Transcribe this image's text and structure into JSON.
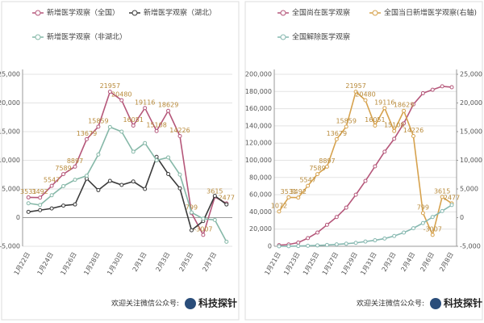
{
  "chart_data": [
    {
      "type": "line",
      "categories": [
        "1月22日",
        null,
        "1月24日",
        null,
        "1月26日",
        null,
        "1月28日",
        null,
        "1月30日",
        null,
        "2月1日",
        null,
        "2月3日",
        null,
        "2月5日",
        null,
        "2月7日",
        null
      ],
      "series": [
        {
          "name": "新增医学观察（全国）",
          "color": "#b5577a",
          "data_labels": true,
          "values": [
            3531,
            3492,
            5547,
            7589,
            8897,
            13679,
            15859,
            21957,
            20480,
            16051,
            19116,
            15108,
            18629,
            14226,
            799,
            -3007,
            3615,
            2477
          ]
        },
        {
          "name": "新增医学观察（湖北）",
          "color": "#3a3a3a",
          "values": [
            1000,
            1300,
            1600,
            2100,
            2300,
            6800,
            4800,
            6400,
            5700,
            6300,
            5000,
            10600,
            7600,
            5100,
            -2200,
            -600,
            3800,
            2300
          ]
        },
        {
          "name": "新增医学观察（非湖北）",
          "color": "#86b8a8",
          "values": [
            2500,
            2200,
            3900,
            5500,
            6600,
            7300,
            11000,
            15800,
            15000,
            11500,
            13000,
            10000,
            10500,
            7500,
            900,
            -200,
            -400,
            -4200
          ]
        }
      ],
      "ylim": [
        -5000,
        25000
      ],
      "yticks": [
        {
          "value": -5000,
          "label": "-5,000"
        },
        0,
        {
          "value": 5000,
          "label": "5,000"
        },
        {
          "value": 10000,
          "label": "10,000"
        },
        {
          "value": 15000,
          "label": "15,000"
        },
        {
          "value": 20000,
          "label": "20,000"
        },
        {
          "value": 25000,
          "label": "25,000"
        }
      ],
      "grid": true,
      "footer": {
        "prefix": "欢迎关注微信公众号:",
        "brand": "科技探针"
      }
    },
    {
      "type": "line",
      "categories": [
        "1月21日",
        null,
        "1月23日",
        null,
        "1月25日",
        null,
        "1月27日",
        null,
        "1月29日",
        null,
        "1月31日",
        null,
        "2月2日",
        null,
        "2月4日",
        null,
        "2月6日",
        null,
        "2月8日"
      ],
      "series": [
        {
          "name": "全国尚在医学观察",
          "color": "#b5577a",
          "values": [
            1300,
            2100,
            4300,
            9500,
            16000,
            25000,
            34000,
            45000,
            60000,
            76000,
            93000,
            110000,
            125000,
            143000,
            165000,
            178000,
            182000,
            186000,
            185000
          ]
        },
        {
          "name": "全国当日新增医学观察(右轴)",
          "color": "#d6a24e",
          "axis": "y2",
          "data_labels": true,
          "values": [
            1072,
            3531,
            3492,
            5547,
            7589,
            8897,
            13679,
            15859,
            21957,
            20480,
            16051,
            19116,
            15108,
            18629,
            14226,
            799,
            -3007,
            3615,
            2477
          ]
        },
        {
          "name": "全国解除医学观察",
          "color": "#86b8b0",
          "values": [
            0,
            100,
            300,
            600,
            1000,
            1500,
            2200,
            3000,
            4000,
            5500,
            7000,
            9000,
            12000,
            16000,
            21000,
            27000,
            34000,
            41000,
            48000
          ]
        }
      ],
      "ylim": [
        0,
        200000
      ],
      "yticks": [
        0,
        {
          "value": 20000,
          "label": "20,000"
        },
        {
          "value": 40000,
          "label": "40,000"
        },
        {
          "value": 60000,
          "label": "60,000"
        },
        {
          "value": 80000,
          "label": "80,000"
        },
        {
          "value": 100000,
          "label": "100,000"
        },
        {
          "value": 120000,
          "label": "120,000"
        },
        {
          "value": 140000,
          "label": "140,000"
        },
        {
          "value": 160000,
          "label": "160,000"
        },
        {
          "value": 180000,
          "label": "180,000"
        },
        {
          "value": 200000,
          "label": "200,000"
        }
      ],
      "y2lim": [
        -5000,
        25000
      ],
      "y2ticks": [
        {
          "value": -5000,
          "label": "-5,000"
        },
        0,
        {
          "value": 5000,
          "label": "5,000"
        },
        {
          "value": 10000,
          "label": "10,000"
        },
        {
          "value": 15000,
          "label": "15,000"
        },
        {
          "value": 20000,
          "label": "20,000"
        },
        {
          "value": 25000,
          "label": "25,000"
        }
      ],
      "grid": true,
      "footer": {
        "prefix": "欢迎关注微信公众号:",
        "brand": "科技探针"
      }
    }
  ]
}
